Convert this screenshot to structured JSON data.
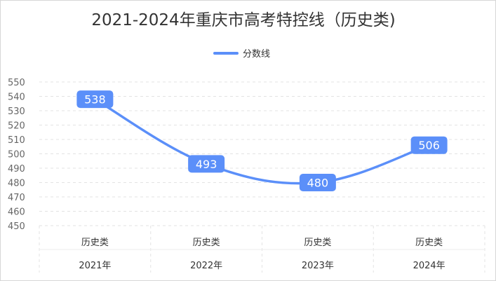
{
  "chart_data": {
    "type": "line",
    "title": "2021-2024年重庆市高考特控线（历史类)",
    "categories": [
      {
        "line1": "历史类",
        "line2": "2021年"
      },
      {
        "line1": "历史类",
        "line2": "2022年"
      },
      {
        "line1": "历史类",
        "line2": "2023年"
      },
      {
        "line1": "历史类",
        "line2": "2024年"
      }
    ],
    "series": [
      {
        "name": "分数线",
        "values": [
          538,
          493,
          480,
          506
        ],
        "color": "#5b8ff9"
      }
    ],
    "ylim": [
      450,
      550
    ],
    "yticks": [
      450,
      460,
      470,
      480,
      490,
      500,
      510,
      520,
      530,
      540,
      550
    ],
    "grid": true,
    "legend": "top-center",
    "smooth": true,
    "data_labels": true
  }
}
